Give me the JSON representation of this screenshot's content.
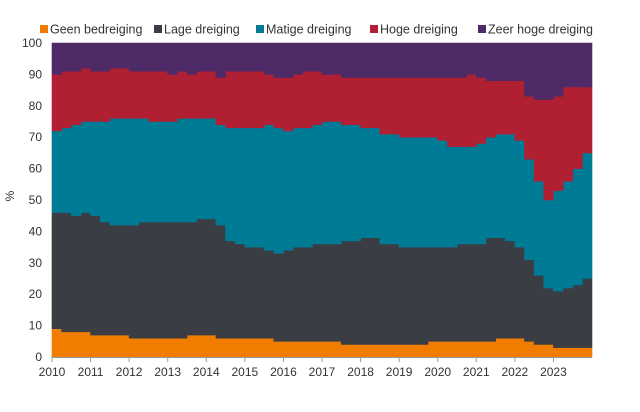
{
  "chart_data": {
    "type": "area",
    "stacked": true,
    "step": true,
    "ylabel": "%",
    "ylim": [
      0,
      100
    ],
    "yticks": [
      0,
      10,
      20,
      30,
      40,
      50,
      60,
      70,
      80,
      90,
      100
    ],
    "xlim": [
      2010,
      2024
    ],
    "xticks": [
      "2010",
      "2011",
      "2012",
      "2013",
      "2014",
      "2015",
      "2016",
      "2017",
      "2018",
      "2019",
      "2020",
      "2021",
      "2022",
      "2023"
    ],
    "legend_position": "top",
    "x": [
      2010.0,
      2010.25,
      2010.5,
      2010.75,
      2011.0,
      2011.25,
      2011.5,
      2011.75,
      2012.0,
      2012.25,
      2012.5,
      2012.75,
      2013.0,
      2013.25,
      2013.5,
      2013.75,
      2014.0,
      2014.25,
      2014.5,
      2014.75,
      2015.0,
      2015.25,
      2015.5,
      2015.75,
      2016.0,
      2016.25,
      2016.5,
      2016.75,
      2017.0,
      2017.25,
      2017.5,
      2017.75,
      2018.0,
      2018.25,
      2018.5,
      2018.75,
      2019.0,
      2019.25,
      2019.5,
      2019.75,
      2020.0,
      2020.25,
      2020.5,
      2020.75,
      2021.0,
      2021.25,
      2021.5,
      2021.75,
      2022.0,
      2022.25,
      2022.5,
      2022.75,
      2023.0,
      2023.25,
      2023.5,
      2023.75
    ],
    "series": [
      {
        "name": "Geen bedreiging",
        "color": "#f07d00",
        "values": [
          9,
          8,
          8,
          8,
          7,
          7,
          7,
          7,
          6,
          6,
          6,
          6,
          6,
          6,
          7,
          7,
          7,
          6,
          6,
          6,
          6,
          6,
          6,
          5,
          5,
          5,
          5,
          5,
          5,
          5,
          4,
          4,
          4,
          4,
          4,
          4,
          4,
          4,
          4,
          5,
          5,
          5,
          5,
          5,
          5,
          5,
          6,
          6,
          6,
          5,
          4,
          4,
          3,
          3,
          3,
          3
        ]
      },
      {
        "name": "Lage dreiging",
        "color": "#3a3d44",
        "values": [
          37,
          38,
          37,
          38,
          38,
          36,
          35,
          35,
          36,
          37,
          37,
          37,
          37,
          37,
          36,
          37,
          37,
          36,
          31,
          30,
          29,
          29,
          28,
          28,
          29,
          30,
          30,
          31,
          31,
          31,
          33,
          33,
          34,
          34,
          32,
          32,
          31,
          31,
          31,
          30,
          30,
          30,
          31,
          31,
          31,
          33,
          32,
          31,
          29,
          26,
          22,
          18,
          18,
          19,
          20,
          22
        ]
      },
      {
        "name": "Matige dreiging",
        "color": "#007b95",
        "values": [
          26,
          27,
          29,
          29,
          30,
          32,
          34,
          34,
          34,
          33,
          32,
          32,
          32,
          33,
          33,
          32,
          32,
          32,
          36,
          37,
          38,
          38,
          40,
          40,
          38,
          38,
          38,
          38,
          39,
          39,
          37,
          37,
          35,
          35,
          35,
          35,
          35,
          35,
          35,
          35,
          34,
          32,
          31,
          31,
          32,
          32,
          33,
          34,
          34,
          32,
          30,
          28,
          32,
          34,
          37,
          40
        ]
      },
      {
        "name": "Hoge dreiging",
        "color": "#b01f32",
        "values": [
          18,
          18,
          17,
          17,
          16,
          16,
          16,
          16,
          15,
          15,
          16,
          16,
          15,
          15,
          14,
          15,
          15,
          15,
          18,
          18,
          18,
          18,
          16,
          16,
          17,
          17,
          18,
          17,
          15,
          15,
          15,
          15,
          16,
          16,
          18,
          18,
          19,
          19,
          19,
          19,
          20,
          22,
          22,
          23,
          21,
          18,
          17,
          17,
          19,
          20,
          26,
          32,
          30,
          30,
          26,
          21
        ]
      },
      {
        "name": "Zeer hoge dreiging",
        "color": "#4e2a66",
        "values": [
          10,
          9,
          9,
          8,
          9,
          9,
          8,
          8,
          9,
          9,
          9,
          9,
          10,
          9,
          10,
          9,
          9,
          11,
          9,
          9,
          9,
          9,
          10,
          11,
          11,
          10,
          9,
          9,
          10,
          10,
          11,
          11,
          11,
          11,
          11,
          11,
          11,
          11,
          11,
          11,
          11,
          11,
          11,
          10,
          11,
          12,
          12,
          12,
          12,
          17,
          18,
          18,
          17,
          14,
          14,
          14
        ]
      }
    ]
  }
}
